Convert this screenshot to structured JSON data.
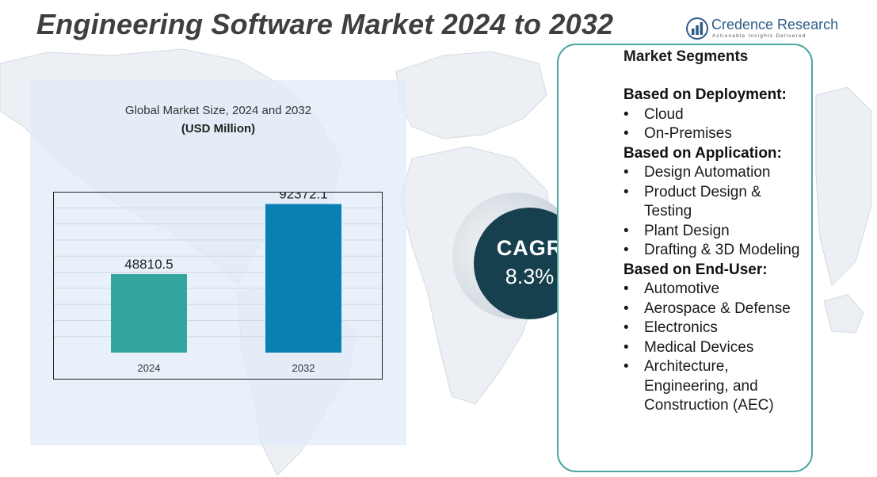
{
  "title": "Engineering Software Market 2024 to 2032",
  "logo": {
    "name": "Credence Research",
    "tagline": "Actionable Insights Delivered"
  },
  "chart": {
    "title": "Global Market Size, 2024 and 2032",
    "unit": "(USD Million)"
  },
  "chart_data": {
    "type": "bar",
    "title": "Global Market Size, 2024 and 2032",
    "ylabel": "USD Million",
    "xlabel": "",
    "categories": [
      "2024",
      "2032"
    ],
    "values": [
      48810.5,
      92372.1
    ],
    "value_labels": [
      "48810.5",
      "92372.1"
    ],
    "colors": [
      "#34a49e",
      "#0a7fb4"
    ],
    "ylim": [
      0,
      100000
    ],
    "grid": true
  },
  "cagr": {
    "label": "CAGR",
    "value": "8.3%"
  },
  "segments": {
    "heading": "Market Segments",
    "groups": [
      {
        "title": "Based on Deployment:",
        "items": [
          "Cloud",
          "On-Premises"
        ]
      },
      {
        "title": "Based on Application:",
        "items": [
          "Design Automation",
          "Product Design & Testing",
          "Plant Design",
          "Drafting & 3D Modeling"
        ]
      },
      {
        "title": "Based on End-User:",
        "items": [
          "Automotive",
          "Aerospace & Defense",
          "Electronics",
          "Medical Devices",
          "Architecture, Engineering, and Construction (AEC)"
        ]
      }
    ]
  }
}
